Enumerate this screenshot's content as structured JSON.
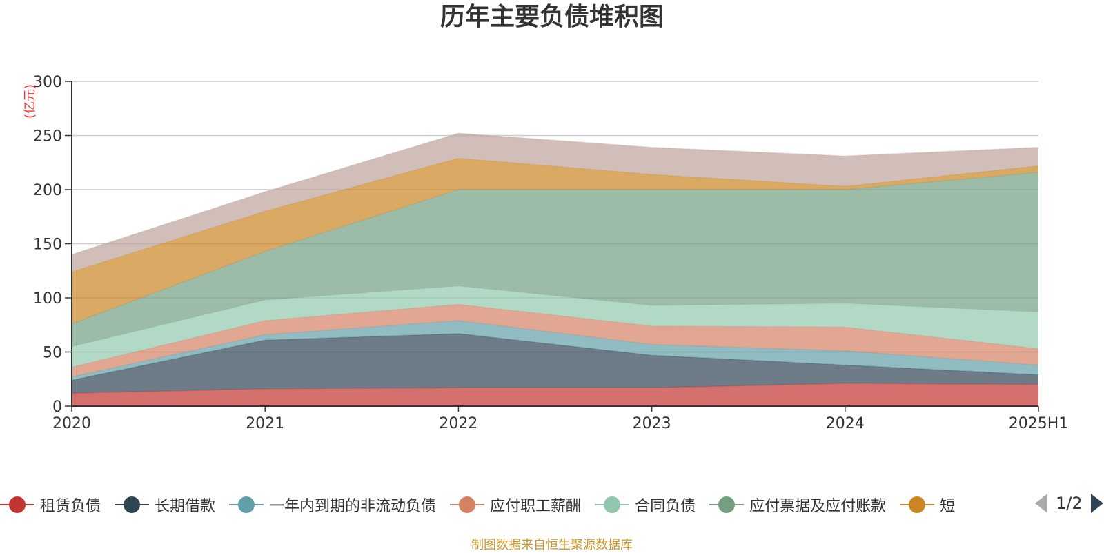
{
  "chart_data": {
    "type": "area",
    "stacked": true,
    "title": "历年主要负债堆积图",
    "unit_label": "(亿元)",
    "x": [
      "2020",
      "2021",
      "2022",
      "2023",
      "2024",
      "2025H1"
    ],
    "ylim": [
      0,
      300
    ],
    "yticks": [
      0,
      50,
      100,
      150,
      200,
      250,
      300
    ],
    "grid": true,
    "legend_position": "bottom",
    "series": [
      {
        "name": "租赁负债",
        "color": "#c23531",
        "values": [
          12,
          16,
          17,
          17,
          21,
          20
        ]
      },
      {
        "name": "长期借款",
        "color": "#2f4554",
        "values": [
          12,
          45,
          50,
          30,
          17,
          9
        ]
      },
      {
        "name": "一年内到期的非流动负债",
        "color": "#61a0a8",
        "values": [
          3,
          5,
          12,
          10,
          13,
          9
        ]
      },
      {
        "name": "应付职工薪酬",
        "color": "#d48265",
        "values": [
          9,
          13,
          15,
          17,
          22,
          15
        ]
      },
      {
        "name": "合同负债",
        "color": "#91c7ae",
        "values": [
          19,
          19,
          17,
          19,
          22,
          34
        ]
      },
      {
        "name": "应付票据及应付账款",
        "color": "#749f83",
        "values": [
          21,
          45,
          89,
          107,
          105,
          129
        ]
      },
      {
        "name": "短",
        "color": "#ca8622",
        "values": [
          48,
          37,
          29,
          14,
          3,
          6
        ]
      },
      {
        "name": "",
        "color": "#bda29a",
        "values": [
          16,
          18,
          23,
          25,
          28,
          17
        ]
      }
    ]
  },
  "legend": {
    "items": [
      "租赁负债",
      "长期借款",
      "一年内到期的非流动负债",
      "应付职工薪酬",
      "合同负债",
      "应付票据及应付账款",
      "短"
    ],
    "page_indicator": "1/2"
  },
  "source_note": "制图数据来自恒生聚源数据库"
}
